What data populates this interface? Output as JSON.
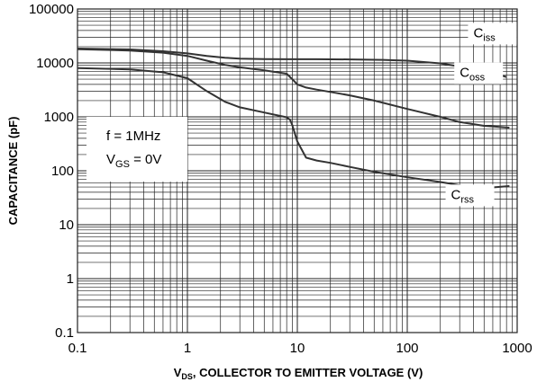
{
  "chart_data": {
    "type": "line",
    "x_scale": "log",
    "y_scale": "log",
    "xlim": [
      0.1,
      1000
    ],
    "ylim": [
      0.1,
      100000
    ],
    "x_ticks": [
      "0.1",
      "1",
      "10",
      "100",
      "1000"
    ],
    "y_ticks": [
      "0.1",
      "1",
      "10",
      "100",
      "1000",
      "10000",
      "100000"
    ],
    "xlabel": {
      "prefix": "V",
      "sub": "DS",
      "rest": ", COLLECTOR TO EMITTER VOLTAGE (V)"
    },
    "ylabel": "CAPACITANCE (pF)",
    "grid": true,
    "annotation": {
      "line1": "f = 1MHz",
      "line2_prefix": "V",
      "line2_sub": "GS",
      "line2_rest": " = 0V"
    },
    "colors": {
      "line": "#333333",
      "grid": "#222222",
      "background": "#ffffff"
    },
    "series": [
      {
        "name": "C",
        "sub": "iss",
        "x": [
          0.1,
          0.3,
          0.6,
          1,
          1.5,
          2.2,
          3,
          5,
          8,
          10,
          15,
          30,
          60,
          100,
          200,
          400,
          800
        ],
        "y": [
          18500,
          17800,
          16500,
          15000,
          13500,
          12500,
          12000,
          11800,
          11700,
          11700,
          11700,
          11600,
          11400,
          11000,
          9800,
          7800,
          5500
        ]
      },
      {
        "name": "C",
        "sub": "oss",
        "x": [
          0.1,
          0.3,
          0.6,
          1,
          1.5,
          2.2,
          3,
          5,
          8,
          9,
          10,
          12,
          15,
          20,
          30,
          50,
          100,
          200,
          300,
          500,
          850
        ],
        "y": [
          18000,
          17000,
          15500,
          13500,
          11000,
          9200,
          8300,
          7300,
          6300,
          5000,
          4000,
          3500,
          3200,
          2900,
          2500,
          2000,
          1400,
          1000,
          800,
          680,
          630
        ]
      },
      {
        "name": "C",
        "sub": "rss",
        "x": [
          0.1,
          0.3,
          0.6,
          1,
          1.5,
          2.2,
          3,
          5,
          8,
          8.6,
          9,
          10,
          12,
          15,
          20,
          30,
          50,
          100,
          200,
          450,
          850
        ],
        "y": [
          8000,
          7600,
          6700,
          5200,
          3000,
          1900,
          1500,
          1200,
          980,
          880,
          700,
          350,
          175,
          155,
          140,
          118,
          96,
          76,
          62,
          47,
          52
        ]
      }
    ]
  }
}
